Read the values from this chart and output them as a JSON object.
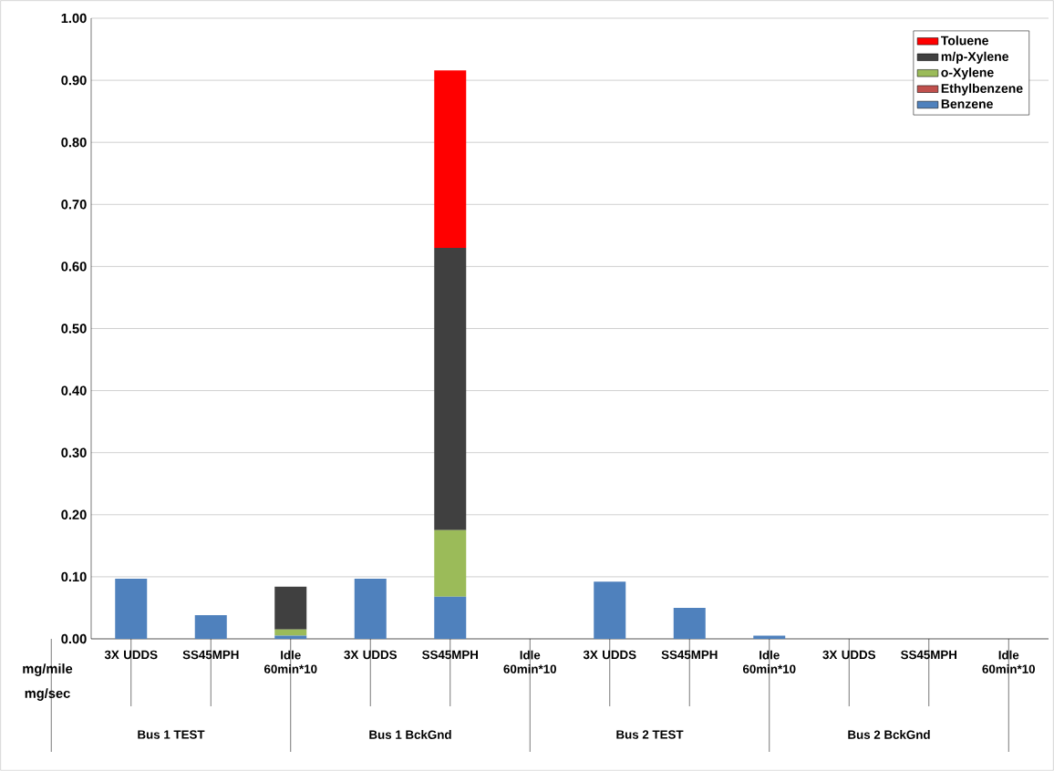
{
  "chart_data": {
    "type": "bar",
    "stacked": true,
    "categories": [
      "3X UDDS",
      "SS45MPH",
      "Idle 60min*10",
      "3X UDDS",
      "SS45MPH",
      "Idle 60min*10",
      "3X UDDS",
      "SS45MPH",
      "Idle 60min*10",
      "3X UDDS",
      "SS45MPH",
      "Idle 60min*10"
    ],
    "series": [
      {
        "name": "Benzene",
        "color": "#4f81bd",
        "values": [
          0.097,
          0.038,
          0.005,
          0.097,
          0.068,
          0,
          0.092,
          0.05,
          0.005,
          0,
          0,
          0
        ]
      },
      {
        "name": "Ethylbenzene",
        "color": "#c0504d",
        "values": [
          0,
          0,
          0,
          0,
          0,
          0,
          0,
          0,
          0,
          0,
          0,
          0
        ]
      },
      {
        "name": "o-Xylene",
        "color": "#9bbb59",
        "values": [
          0,
          0,
          0.01,
          0,
          0.107,
          0,
          0,
          0,
          0,
          0,
          0,
          0
        ]
      },
      {
        "name": "m/p-Xylene",
        "color": "#404040",
        "values": [
          0,
          0,
          0.069,
          0,
          0.455,
          0,
          0,
          0,
          0,
          0,
          0,
          0
        ]
      },
      {
        "name": "Toluene",
        "color": "#ff0000",
        "values": [
          0,
          0,
          0,
          0,
          0.286,
          0,
          0,
          0,
          0,
          0,
          0,
          0
        ]
      }
    ],
    "ylim": [
      0,
      1.0
    ],
    "yticks": [
      {
        "value": 0,
        "label": "0.00"
      },
      {
        "value": 0.1,
        "label": "0.10"
      },
      {
        "value": 0.2,
        "label": "0.20"
      },
      {
        "value": 0.3,
        "label": "0.30"
      },
      {
        "value": 0.4,
        "label": "0.40"
      },
      {
        "value": 0.5,
        "label": "0.50"
      },
      {
        "value": 0.6,
        "label": "0.60"
      },
      {
        "value": 0.7,
        "label": "0.70"
      },
      {
        "value": 0.8,
        "label": "0.80"
      },
      {
        "value": 0.9,
        "label": "0.90"
      },
      {
        "value": 1.0,
        "label": "1.00"
      }
    ],
    "grid": "y",
    "legend": "top right",
    "annotations": [
      "Bus 1 TEST",
      "Bus 1 BckGnd",
      "Bus 2 TEST",
      "Bus 2 BckGnd",
      "mg/mile",
      "mg/sec"
    ]
  }
}
